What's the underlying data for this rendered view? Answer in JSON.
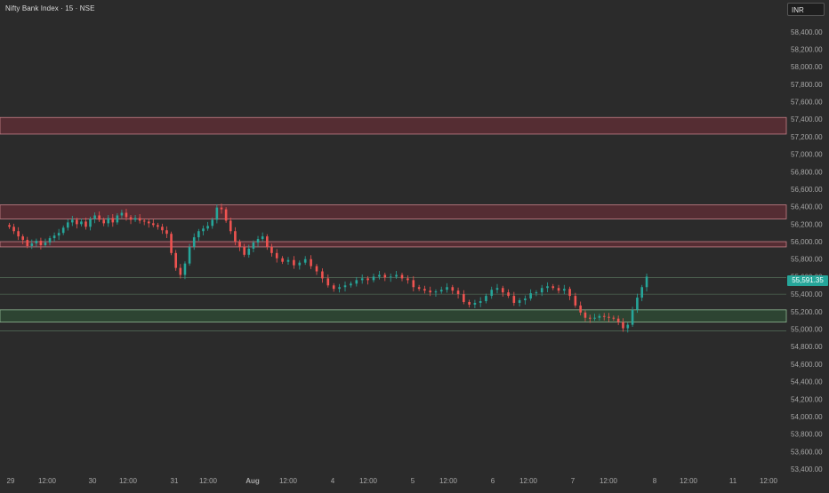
{
  "header": {
    "title": "Nifty Bank Index · 15 · NSE",
    "currency": "INR",
    "last_price": "55,591.35"
  },
  "colors": {
    "background": "#2b2b2b",
    "up": "#26a69a",
    "down": "#ef5350",
    "resistance_zone": "#5a2e34",
    "support_zone": "#2e4733",
    "axis_text": "#a7a7a7"
  },
  "chart_data": {
    "type": "candlestick",
    "y_axis_ticks": [
      58400,
      58200,
      58000,
      57800,
      57600,
      57400,
      57200,
      57000,
      56800,
      56600,
      56400,
      56200,
      56000,
      55800,
      55600,
      55400,
      55200,
      55000,
      54800,
      54600,
      54400,
      54200,
      54000,
      53800,
      53600,
      53400
    ],
    "y_axis_labels": [
      "58,400.00",
      "58,200.00",
      "58,000.00",
      "57,800.00",
      "57,600.00",
      "57,400.00",
      "57,200.00",
      "57,000.00",
      "56,800.00",
      "56,600.00",
      "56,400.00",
      "56,200.00",
      "56,000.00",
      "55,800.00",
      "55,600.00",
      "55,400.00",
      "55,200.00",
      "55,000.00",
      "54,800.00",
      "54,600.00",
      "54,400.00",
      "54,200.00",
      "54,000.00",
      "53,800.00",
      "53,600.00",
      "53,400.00"
    ],
    "ylim": [
      53380,
      58560
    ],
    "x_axis_labels": [
      "29",
      "12:00",
      "30",
      "12:00",
      "31",
      "12:00",
      "Aug",
      "12:00",
      "4",
      "12:00",
      "5",
      "12:00",
      "6",
      "12:00",
      "7",
      "12:00",
      "8",
      "12:00",
      "11",
      "12:00"
    ],
    "zones": [
      {
        "kind": "resistance",
        "low": 57230,
        "high": 57420
      },
      {
        "kind": "resistance",
        "low": 56260,
        "high": 56420
      },
      {
        "kind": "resistance",
        "low": 55940,
        "high": 56000
      },
      {
        "kind": "support",
        "low": 55080,
        "high": 55220
      }
    ],
    "lines": [
      55591,
      55400,
      54980
    ],
    "price_path": [
      56170,
      56120,
      56060,
      56020,
      55950,
      55980,
      56010,
      55960,
      55990,
      56040,
      56070,
      56100,
      56160,
      56220,
      56250,
      56200,
      56230,
      56170,
      56260,
      56300,
      56250,
      56210,
      56270,
      56220,
      56300,
      56330,
      56280,
      56250,
      56270,
      56240,
      56230,
      56210,
      56190,
      56170,
      56130,
      56090,
      55870,
      55700,
      55620,
      55750,
      55940,
      56050,
      56120,
      56150,
      56180,
      56250,
      56390,
      56370,
      56240,
      56120,
      56000,
      55940,
      55850,
      55920,
      55990,
      56030,
      56060,
      55940,
      55870,
      55810,
      55770,
      55790,
      55730,
      55760,
      55800,
      55720,
      55660,
      55580,
      55500,
      55460,
      55480,
      55500,
      55520,
      55560,
      55580,
      55560,
      55600,
      55620,
      55590,
      55600,
      55620,
      55580,
      55560,
      55480,
      55460,
      55440,
      55420,
      55430,
      55450,
      55480,
      55440,
      55400,
      55310,
      55280,
      55300,
      55320,
      55380,
      55450,
      55470,
      55420,
      55380,
      55300,
      55330,
      55350,
      55410,
      55420,
      55470,
      55490,
      55470,
      55440,
      55460,
      55380,
      55270,
      55190,
      55130,
      55120,
      55130,
      55150,
      55140,
      55130,
      55120,
      55080,
      55010,
      55050,
      55220,
      55360,
      55480,
      55600
    ]
  }
}
